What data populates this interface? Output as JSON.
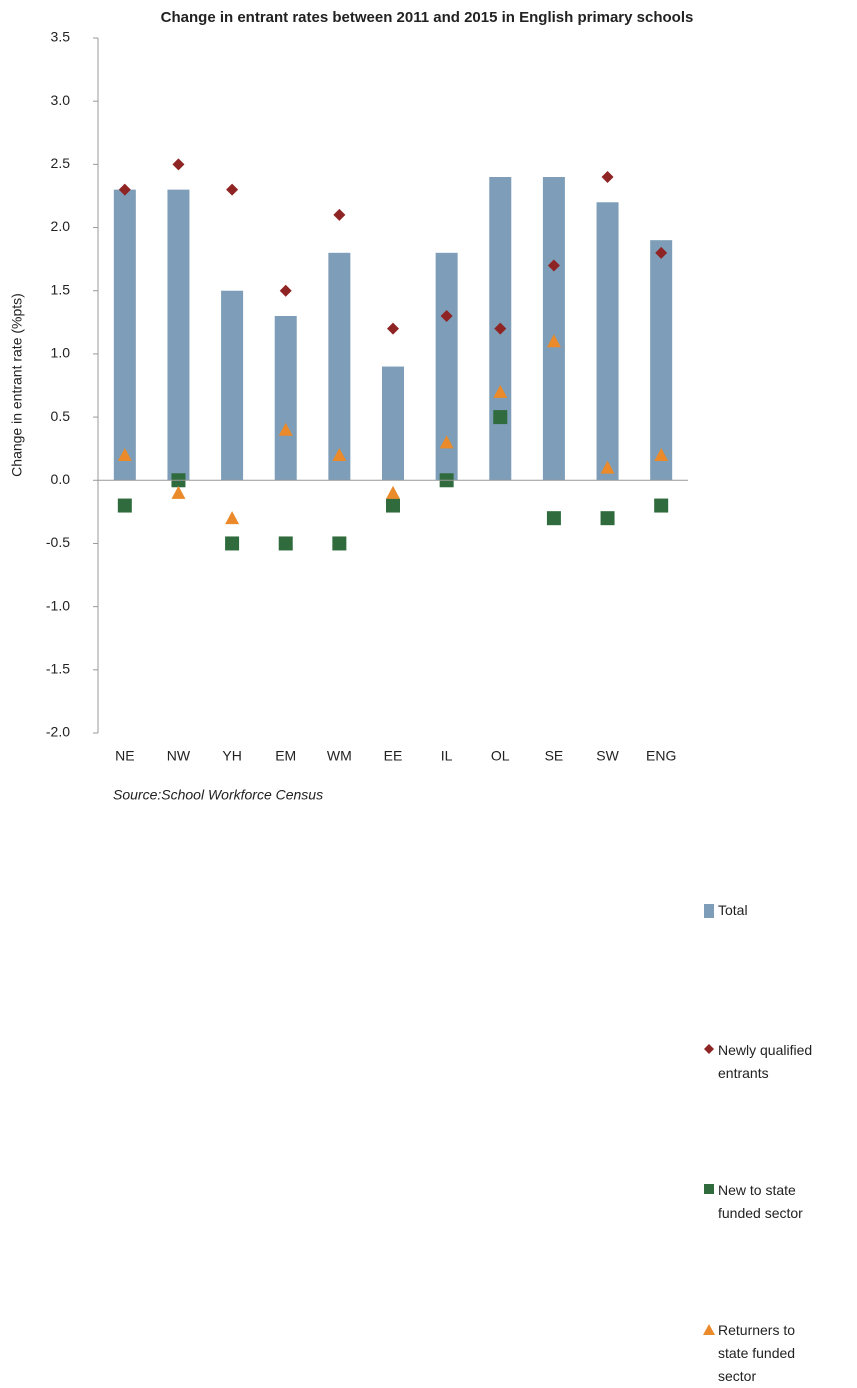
{
  "chart_data": {
    "type": "bar",
    "title": "Change in entrant rates between 2011 and 2015 in English primary schools",
    "y_label": "Change in entrant rate (%pts)",
    "source": "Source:School Workforce Census",
    "categories": [
      "NE",
      "NW",
      "YH",
      "EM",
      "WM",
      "EE",
      "IL",
      "OL",
      "SE",
      "SW",
      "ENG"
    ],
    "series": [
      {
        "name": "Total",
        "marker": "bar",
        "color": "#7d9db8",
        "values": [
          2.3,
          2.3,
          1.5,
          1.3,
          1.8,
          0.9,
          1.8,
          2.4,
          2.4,
          2.2,
          1.9
        ]
      },
      {
        "name": "Newly qualified entrants",
        "marker": "diamond",
        "color": "#8e2424",
        "values": [
          2.3,
          2.5,
          2.3,
          1.5,
          2.1,
          1.2,
          1.3,
          1.2,
          1.7,
          2.4,
          1.8
        ]
      },
      {
        "name": "New to state funded sector",
        "marker": "square",
        "color": "#2f6b3d",
        "values": [
          -0.2,
          0,
          -0.5,
          -0.5,
          -0.5,
          -0.2,
          0,
          0.5,
          -0.3,
          -0.3,
          -0.2
        ]
      },
      {
        "name": "Returners to state funded sector",
        "marker": "triangle",
        "color": "#eb8a2a",
        "values": [
          0.2,
          -0.1,
          -0.3,
          0.4,
          0.2,
          -0.1,
          0.3,
          0.7,
          1.1,
          0.1,
          0.2
        ]
      }
    ],
    "ylim": [
      -2,
      3.5
    ],
    "yticks": [
      {
        "value": -2,
        "label": "-2.0"
      },
      {
        "value": -1.5,
        "label": "-1.5"
      },
      {
        "value": -1,
        "label": "-1.0"
      },
      -0.5,
      {
        "value": 0,
        "label": "0.0"
      },
      0.5,
      {
        "value": 1,
        "label": "1.0"
      },
      1.5,
      {
        "value": 2,
        "label": "2.0"
      },
      2.5,
      {
        "value": 3,
        "label": "3.0"
      },
      3.5
    ],
    "grid": false,
    "legend": "right"
  }
}
